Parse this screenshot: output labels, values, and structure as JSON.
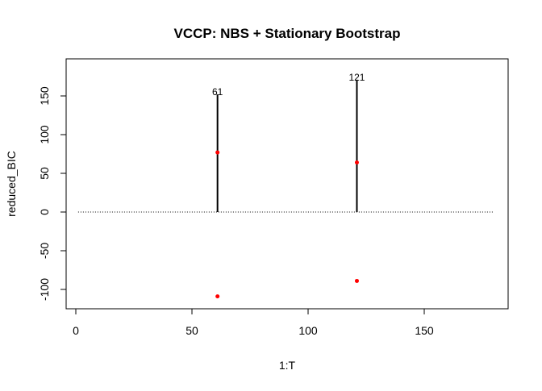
{
  "chart_data": {
    "type": "line",
    "title": "VCCP: NBS + Stationary Bootstrap",
    "xlabel": "1:T",
    "ylabel": "reduced_BIC",
    "xlim": [
      -4,
      186
    ],
    "ylim": [
      -123,
      180
    ],
    "x_ticks": [
      0,
      50,
      100,
      150
    ],
    "y_ticks": [
      -100,
      -50,
      0,
      50,
      100,
      150
    ],
    "grid": false,
    "baseline": {
      "x_start": 1,
      "x_end": 180,
      "y": 0,
      "style": "dotted"
    },
    "change_points": [
      {
        "x": 61,
        "height": 152,
        "label": "61"
      },
      {
        "x": 121,
        "height": 171,
        "label": "121"
      }
    ],
    "points": [
      {
        "x": 61,
        "y": 77
      },
      {
        "x": 121,
        "y": 64
      },
      {
        "x": 61,
        "y": -109
      },
      {
        "x": 121,
        "y": -89
      }
    ],
    "colors": {
      "segments": "#000000",
      "points": "#ff0000",
      "baseline": "#000000"
    }
  }
}
